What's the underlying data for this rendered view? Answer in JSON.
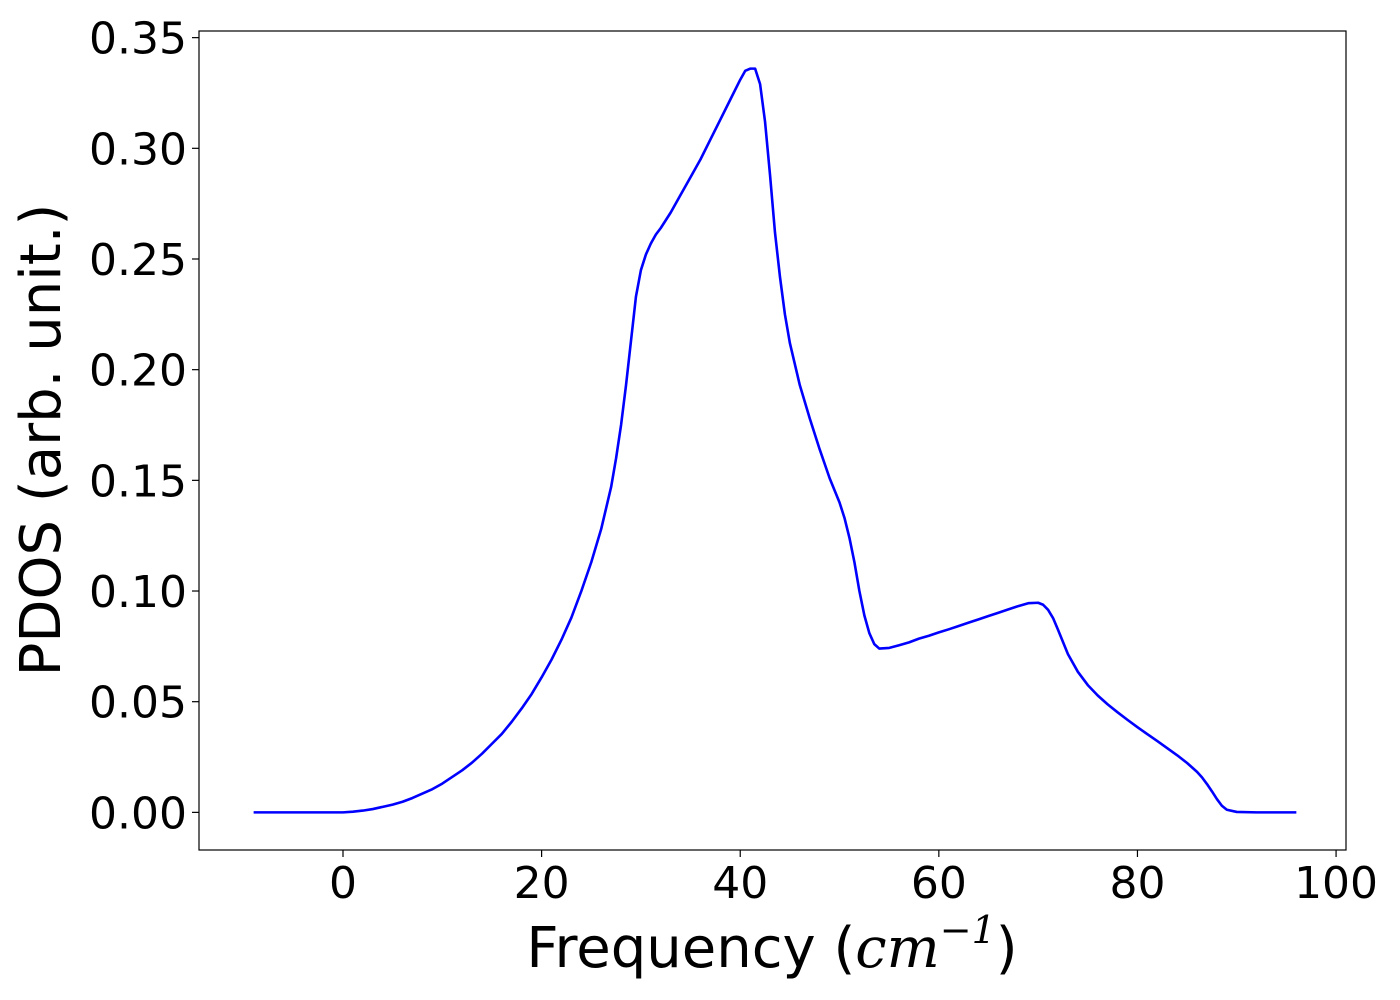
{
  "chart_data": {
    "type": "line",
    "title": "",
    "xlabel": "Frequency (",
    "xlabel_math": "cm",
    "xlabel_exp": "−1",
    "xlabel_close": ")",
    "ylabel": "PDOS (arb. unit.)",
    "xlim": [
      -14.5,
      101
    ],
    "ylim": [
      -0.017,
      0.353
    ],
    "xticks": [
      {
        "value": 0,
        "label": "0"
      },
      {
        "value": 20,
        "label": "20"
      },
      {
        "value": 40,
        "label": "40"
      },
      {
        "value": 60,
        "label": "60"
      },
      {
        "value": 80,
        "label": "80"
      },
      {
        "value": 100,
        "label": "100"
      }
    ],
    "yticks": [
      {
        "value": 0.0,
        "label": "0.00"
      },
      {
        "value": 0.05,
        "label": "0.05"
      },
      {
        "value": 0.1,
        "label": "0.10"
      },
      {
        "value": 0.15,
        "label": "0.15"
      },
      {
        "value": 0.2,
        "label": "0.20"
      },
      {
        "value": 0.25,
        "label": "0.25"
      },
      {
        "value": 0.3,
        "label": "0.30"
      },
      {
        "value": 0.35,
        "label": "0.35"
      }
    ],
    "grid": false,
    "legend": "none",
    "series": [
      {
        "color": "#0000ff",
        "x": [
          -9,
          -5,
          -2,
          0,
          1,
          2,
          3,
          4,
          5,
          6,
          7,
          8,
          9,
          10,
          11,
          12,
          13,
          14,
          15,
          16,
          17,
          18,
          19,
          20,
          21,
          22,
          23,
          24,
          25,
          26,
          27,
          27.5,
          28,
          28.5,
          29,
          29.5,
          30,
          30.5,
          31,
          31.5,
          32,
          33,
          34,
          35,
          36,
          37,
          38,
          39,
          40,
          40.5,
          41,
          41.5,
          42,
          42.5,
          43,
          43.5,
          44,
          44.5,
          45,
          46,
          47,
          48,
          49,
          50,
          50.5,
          51,
          51.5,
          52,
          52.5,
          53,
          53.5,
          54,
          55,
          56,
          57,
          58,
          59,
          60,
          61,
          62,
          63,
          64,
          65,
          66,
          67,
          68,
          69,
          70,
          70.5,
          71,
          71.5,
          72,
          73,
          74,
          75,
          76,
          77,
          78,
          79,
          80,
          81,
          82,
          83,
          84,
          85,
          86,
          86.5,
          87,
          87.5,
          88,
          88.5,
          89,
          90,
          92,
          96
        ],
        "y": [
          0,
          0,
          0,
          0,
          0.0003,
          0.0008,
          0.0015,
          0.0025,
          0.0035,
          0.0048,
          0.0065,
          0.0085,
          0.0105,
          0.013,
          0.016,
          0.019,
          0.0225,
          0.0265,
          0.031,
          0.0355,
          0.041,
          0.047,
          0.0535,
          0.061,
          0.069,
          0.078,
          0.088,
          0.1,
          0.113,
          0.128,
          0.147,
          0.16,
          0.175,
          0.193,
          0.213,
          0.233,
          0.245,
          0.252,
          0.257,
          0.261,
          0.264,
          0.271,
          0.279,
          0.287,
          0.295,
          0.304,
          0.313,
          0.322,
          0.331,
          0.335,
          0.336,
          0.336,
          0.329,
          0.312,
          0.288,
          0.262,
          0.242,
          0.225,
          0.212,
          0.193,
          0.178,
          0.164,
          0.151,
          0.14,
          0.133,
          0.124,
          0.113,
          0.1,
          0.089,
          0.081,
          0.076,
          0.074,
          0.0743,
          0.0755,
          0.0768,
          0.0785,
          0.0798,
          0.0813,
          0.0827,
          0.0842,
          0.0857,
          0.0872,
          0.0887,
          0.0902,
          0.0917,
          0.0932,
          0.0945,
          0.0947,
          0.0938,
          0.0915,
          0.0878,
          0.0825,
          0.0715,
          0.0635,
          0.0575,
          0.0528,
          0.0488,
          0.0452,
          0.0418,
          0.0385,
          0.0353,
          0.0322,
          0.029,
          0.0258,
          0.0223,
          0.0183,
          0.0158,
          0.0128,
          0.0095,
          0.006,
          0.003,
          0.0012,
          0.0002,
          0,
          0
        ]
      }
    ]
  }
}
